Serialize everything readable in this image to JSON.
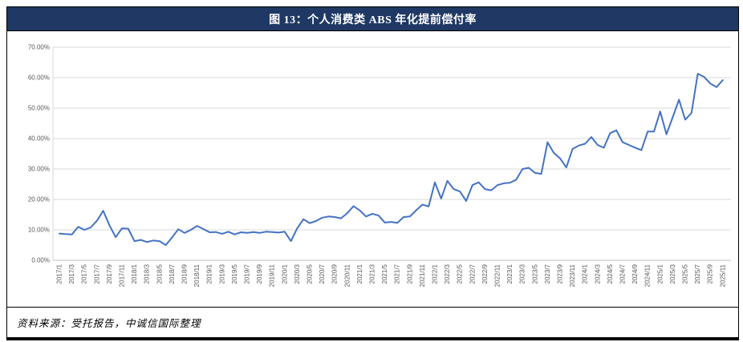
{
  "figure": {
    "title": "图 13：个人消费类 ABS 年化提前偿付率",
    "source": "资料来源：受托报告，中诚信国际整理"
  },
  "colors": {
    "title_bar_bg": "#1f3864",
    "title_text": "#ffffff",
    "line": "#4472c4",
    "gridline": "#d9d9d9",
    "axis_line": "#bfbfbf",
    "tick_label": "#595959",
    "border": "#000000"
  },
  "chart_data": {
    "type": "line",
    "title": "个人消费类 ABS 年化提前偿付率",
    "legend_position": "none",
    "grid": true,
    "ylim": [
      0,
      70
    ],
    "yticks": [
      "0.00%",
      "10.00%",
      "20.00%",
      "30.00%",
      "40.00%",
      "50.00%",
      "60.00%",
      "70.00%"
    ],
    "x_label_every": 2,
    "x": [
      "2017/1",
      "2017/2",
      "2017/3",
      "2017/4",
      "2017/5",
      "2017/6",
      "2017/7",
      "2017/8",
      "2017/9",
      "2017/10",
      "2017/11",
      "2017/12",
      "2018/1",
      "2018/2",
      "2018/3",
      "2018/4",
      "2018/5",
      "2018/6",
      "2018/7",
      "2018/8",
      "2018/9",
      "2018/10",
      "2018/11",
      "2018/12",
      "2019/1",
      "2019/2",
      "2019/3",
      "2019/4",
      "2019/5",
      "2019/6",
      "2019/7",
      "2019/8",
      "2019/9",
      "2019/10",
      "2019/11",
      "2019/12",
      "2020/1",
      "2020/2",
      "2020/3",
      "2020/4",
      "2020/5",
      "2020/6",
      "2020/7",
      "2020/8",
      "2020/9",
      "2020/10",
      "2020/11",
      "2020/12",
      "2021/1",
      "2021/2",
      "2021/3",
      "2021/4",
      "2021/5",
      "2021/6",
      "2021/7",
      "2021/8",
      "2021/9",
      "2021/10",
      "2021/11",
      "2021/12",
      "2022/1",
      "2022/2",
      "2022/3",
      "2022/4",
      "2022/5",
      "2022/6",
      "2022/7",
      "2022/8",
      "2022/9",
      "2022/10",
      "2022/11",
      "2022/12",
      "2023/1",
      "2023/2",
      "2023/3",
      "2023/4",
      "2023/5",
      "2023/6",
      "2023/7",
      "2023/8",
      "2023/9",
      "2023/10",
      "2023/11",
      "2023/12",
      "2024/1",
      "2024/2",
      "2024/3",
      "2024/4",
      "2024/5",
      "2024/6",
      "2024/7",
      "2024/8",
      "2024/9",
      "2024/10",
      "2024/11",
      "2024/12",
      "2025/1",
      "2025/2",
      "2025/3",
      "2025/4",
      "2025/5",
      "2025/6",
      "2025/7",
      "2025/8",
      "2025/9",
      "2025/10",
      "2025/11"
    ],
    "values": [
      8.8,
      8.6,
      8.5,
      11.0,
      10.0,
      10.8,
      13.0,
      16.3,
      11.5,
      7.6,
      10.5,
      10.4,
      6.3,
      6.7,
      6.0,
      6.5,
      6.3,
      5.0,
      7.5,
      10.2,
      9.0,
      10.0,
      11.3,
      10.3,
      9.2,
      9.3,
      8.7,
      9.4,
      8.5,
      9.2,
      9.0,
      9.3,
      9.0,
      9.4,
      9.3,
      9.1,
      9.4,
      6.3,
      10.5,
      13.5,
      12.2,
      12.9,
      14.0,
      14.4,
      14.2,
      13.8,
      15.5,
      17.8,
      16.4,
      14.4,
      15.3,
      14.7,
      12.4,
      12.6,
      12.3,
      14.2,
      14.4,
      16.4,
      18.3,
      17.7,
      25.6,
      20.3,
      26.1,
      23.4,
      22.6,
      19.5,
      24.7,
      25.6,
      23.4,
      23.0,
      24.7,
      25.3,
      25.5,
      26.5,
      30.0,
      30.4,
      28.7,
      28.4,
      38.8,
      35.3,
      33.5,
      30.5,
      36.6,
      37.7,
      38.3,
      40.5,
      37.9,
      37.0,
      41.8,
      42.7,
      38.8,
      37.9,
      37.0,
      36.2,
      42.3,
      42.3,
      48.9,
      41.4,
      47.0,
      52.8,
      46.2,
      48.4,
      61.3,
      60.3,
      58.1,
      56.9,
      59.2
    ]
  }
}
